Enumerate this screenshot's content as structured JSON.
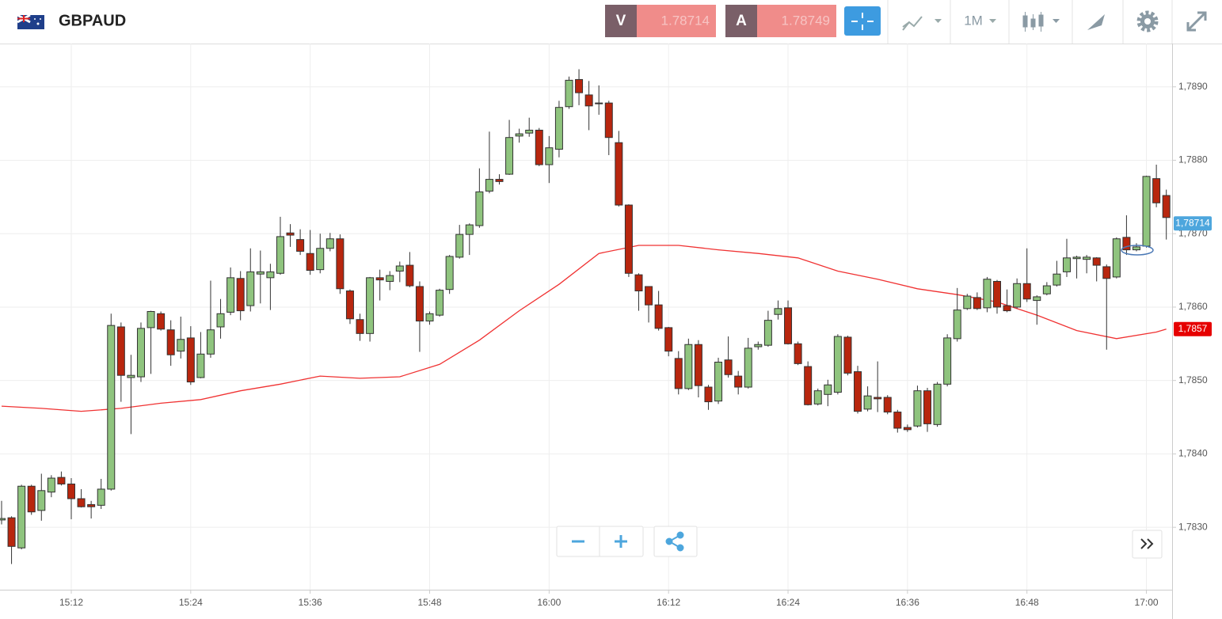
{
  "header": {
    "symbol": "GBPAUD",
    "bid_label": "V",
    "bid": "1.78714",
    "ask_label": "A",
    "ask": "1.78749",
    "timeframe": "1M"
  },
  "chart_data": {
    "type": "candlestick",
    "x": [
      "15:05",
      "15:06",
      "15:07",
      "15:08",
      "15:09",
      "15:10",
      "15:11",
      "15:12",
      "15:13",
      "15:14",
      "15:15",
      "15:16",
      "15:17",
      "15:18",
      "15:19",
      "15:20",
      "15:21",
      "15:22",
      "15:23",
      "15:24",
      "15:25",
      "15:26",
      "15:27",
      "15:28",
      "15:29",
      "15:30",
      "15:31",
      "15:32",
      "15:33",
      "15:34",
      "15:35",
      "15:36",
      "15:37",
      "15:38",
      "15:39",
      "15:40",
      "15:41",
      "15:42",
      "15:43",
      "15:44",
      "15:45",
      "15:46",
      "15:47",
      "15:48",
      "15:49",
      "15:50",
      "15:51",
      "15:52",
      "15:53",
      "15:54",
      "15:55",
      "15:56",
      "15:57",
      "15:58",
      "15:59",
      "16:00",
      "16:01",
      "16:02",
      "16:03",
      "16:04",
      "16:05",
      "16:06",
      "16:07",
      "16:08",
      "16:09",
      "16:10",
      "16:11",
      "16:12",
      "16:13",
      "16:14",
      "16:15",
      "16:16",
      "16:17",
      "16:18",
      "16:19",
      "16:20",
      "16:21",
      "16:22",
      "16:23",
      "16:24",
      "16:25",
      "16:26",
      "16:27",
      "16:28",
      "16:29",
      "16:30",
      "16:31",
      "16:32",
      "16:33",
      "16:34",
      "16:35",
      "16:36",
      "16:37",
      "16:38",
      "16:39",
      "16:40",
      "16:41",
      "16:42",
      "16:43",
      "16:44",
      "16:45",
      "16:46",
      "16:47",
      "16:48",
      "16:49",
      "16:50",
      "16:51",
      "16:52",
      "16:53",
      "16:54",
      "16:55",
      "16:56",
      "16:57",
      "16:58",
      "16:59",
      "17:00",
      "17:01",
      "17:02"
    ],
    "open": [
      1.7831,
      1.78313,
      1.78272,
      1.78356,
      1.78323,
      1.78348,
      1.78368,
      1.78359,
      1.78339,
      1.78331,
      1.7833,
      1.78352,
      1.78573,
      1.78504,
      1.78505,
      1.78572,
      1.78591,
      1.78569,
      1.7854,
      1.78558,
      1.78504,
      1.78536,
      1.78573,
      1.78593,
      1.78639,
      1.78602,
      1.78645,
      1.7864,
      1.78646,
      1.78701,
      1.78692,
      1.78673,
      1.78651,
      1.7868,
      1.78693,
      1.78622,
      1.78583,
      1.78564,
      1.7864,
      1.78635,
      1.78649,
      1.78657,
      1.78628,
      1.78581,
      1.78589,
      1.78624,
      1.78668,
      1.78699,
      1.78711,
      1.78758,
      1.78774,
      1.78781,
      1.78833,
      1.78837,
      1.78841,
      1.78794,
      1.78815,
      1.78873,
      1.7891,
      1.78889,
      1.78878,
      1.78878,
      1.78824,
      1.78739,
      1.78644,
      1.78628,
      1.78603,
      1.78572,
      1.7853,
      1.78489,
      1.78549,
      1.78491,
      1.78472,
      1.78528,
      1.78506,
      1.78491,
      1.78546,
      1.78548,
      1.7859,
      1.78599,
      1.7855,
      1.78519,
      1.78468,
      1.78481,
      1.78484,
      1.78559,
      1.78512,
      1.78461,
      1.78477,
      1.78477,
      1.78457,
      1.78436,
      1.78438,
      1.78486,
      1.7844,
      1.78495,
      1.78557,
      1.78598,
      1.78613,
      1.78599,
      1.78635,
      1.78602,
      1.786,
      1.78632,
      1.78609,
      1.78618,
      1.7863,
      1.78648,
      1.78666,
      1.78665,
      1.78667,
      1.78655,
      1.78641,
      1.78695,
      1.78678,
      1.78683,
      1.78775,
      1.78752
    ],
    "high": [
      1.78336,
      1.78315,
      1.78358,
      1.78358,
      1.78373,
      1.78371,
      1.78376,
      1.78367,
      1.78352,
      1.78336,
      1.78366,
      1.78591,
      1.78579,
      1.78535,
      1.78579,
      1.78595,
      1.78594,
      1.78582,
      1.78587,
      1.78574,
      1.78566,
      1.78636,
      1.78611,
      1.78654,
      1.78649,
      1.7868,
      1.78677,
      1.78659,
      1.78723,
      1.78713,
      1.78706,
      1.78705,
      1.787,
      1.78701,
      1.78699,
      1.78624,
      1.78591,
      1.78641,
      1.78651,
      1.78649,
      1.78662,
      1.78675,
      1.78635,
      1.78594,
      1.78625,
      1.78671,
      1.78712,
      1.78714,
      1.78789,
      1.78839,
      1.78781,
      1.78855,
      1.78843,
      1.78858,
      1.78844,
      1.78833,
      1.78881,
      1.78914,
      1.78924,
      1.78908,
      1.78902,
      1.78881,
      1.7884,
      1.7874,
      1.78646,
      1.78628,
      1.78622,
      1.78573,
      1.7854,
      1.78557,
      1.78555,
      1.78494,
      1.78531,
      1.7856,
      1.78513,
      1.78558,
      1.78553,
      1.78595,
      1.78609,
      1.78609,
      1.78553,
      1.78526,
      1.78489,
      1.78501,
      1.78563,
      1.78561,
      1.7852,
      1.78492,
      1.78526,
      1.7848,
      1.7846,
      1.7844,
      1.78493,
      1.7849,
      1.78498,
      1.78563,
      1.78626,
      1.78618,
      1.7862,
      1.78641,
      1.78637,
      1.78624,
      1.78639,
      1.7868,
      1.78616,
      1.78634,
      1.78663,
      1.78693,
      1.7867,
      1.78671,
      1.78668,
      1.78658,
      1.78695,
      1.78725,
      1.78687,
      1.78779,
      1.78794,
      1.7876
    ],
    "low": [
      1.78304,
      1.7825,
      1.7827,
      1.78317,
      1.78309,
      1.78341,
      1.78357,
      1.78311,
      1.78327,
      1.78312,
      1.78325,
      1.7835,
      1.78471,
      1.78427,
      1.78498,
      1.78509,
      1.78568,
      1.7852,
      1.7853,
      1.78494,
      1.78503,
      1.78531,
      1.78557,
      1.78589,
      1.78582,
      1.78594,
      1.78605,
      1.78596,
      1.78644,
      1.78682,
      1.78671,
      1.78644,
      1.78646,
      1.78676,
      1.78618,
      1.78577,
      1.78554,
      1.78553,
      1.78609,
      1.78623,
      1.78634,
      1.78627,
      1.78539,
      1.78576,
      1.78587,
      1.78618,
      1.78666,
      1.78671,
      1.78708,
      1.78755,
      1.78767,
      1.7878,
      1.78824,
      1.78832,
      1.78792,
      1.78769,
      1.78804,
      1.7887,
      1.78875,
      1.78841,
      1.78862,
      1.78807,
      1.78737,
      1.78641,
      1.78595,
      1.78579,
      1.78568,
      1.78533,
      1.78481,
      1.78487,
      1.78477,
      1.7846,
      1.78468,
      1.78504,
      1.78481,
      1.78489,
      1.78542,
      1.78546,
      1.78583,
      1.78549,
      1.78521,
      1.78466,
      1.78466,
      1.78465,
      1.78481,
      1.78507,
      1.78455,
      1.78458,
      1.78457,
      1.78454,
      1.78429,
      1.7843,
      1.78436,
      1.7843,
      1.78437,
      1.78492,
      1.78553,
      1.78596,
      1.78596,
      1.78593,
      1.78591,
      1.78593,
      1.78598,
      1.78607,
      1.78576,
      1.78616,
      1.78628,
      1.78641,
      1.78639,
      1.78646,
      1.78635,
      1.78542,
      1.78639,
      1.78671,
      1.78676,
      1.78681,
      1.78736,
      1.78692
    ],
    "close": [
      1.78312,
      1.78274,
      1.78356,
      1.78321,
      1.7835,
      1.78367,
      1.78359,
      1.78339,
      1.78328,
      1.78328,
      1.78352,
      1.78575,
      1.78507,
      1.78507,
      1.78571,
      1.78594,
      1.7857,
      1.78535,
      1.78556,
      1.78498,
      1.78536,
      1.78569,
      1.78591,
      1.7864,
      1.78595,
      1.78648,
      1.78648,
      1.78648,
      1.78696,
      1.78698,
      1.78676,
      1.7865,
      1.7868,
      1.78693,
      1.78625,
      1.78584,
      1.78564,
      1.7864,
      1.78637,
      1.78643,
      1.78656,
      1.78629,
      1.78581,
      1.78591,
      1.78623,
      1.78669,
      1.78699,
      1.78712,
      1.78757,
      1.78774,
      1.78771,
      1.78831,
      1.78836,
      1.78841,
      1.78794,
      1.78817,
      1.78872,
      1.78909,
      1.78892,
      1.78874,
      1.78877,
      1.78831,
      1.78739,
      1.78646,
      1.78622,
      1.78603,
      1.78571,
      1.7854,
      1.78489,
      1.78549,
      1.78493,
      1.78471,
      1.78525,
      1.78508,
      1.78491,
      1.78544,
      1.78549,
      1.78582,
      1.78598,
      1.7855,
      1.78523,
      1.78467,
      1.78486,
      1.78494,
      1.7856,
      1.7851,
      1.78458,
      1.78479,
      1.78475,
      1.78457,
      1.78435,
      1.78433,
      1.78486,
      1.78441,
      1.78495,
      1.78558,
      1.78596,
      1.78615,
      1.78598,
      1.78638,
      1.786,
      1.78595,
      1.78632,
      1.78611,
      1.78614,
      1.78629,
      1.78645,
      1.78667,
      1.78668,
      1.78668,
      1.78657,
      1.78639,
      1.78693,
      1.78678,
      1.78682,
      1.78778,
      1.78742,
      1.78722
    ],
    "up_color": "#8fc47e",
    "down_color": "#b8260e",
    "moving_average": {
      "color": "#f03232",
      "x": [
        "15:05",
        "15:09",
        "15:13",
        "15:17",
        "15:21",
        "15:25",
        "15:29",
        "15:33",
        "15:37",
        "15:41",
        "15:45",
        "15:49",
        "15:53",
        "15:57",
        "16:01",
        "16:05",
        "16:09",
        "16:13",
        "16:17",
        "16:21",
        "16:25",
        "16:29",
        "16:33",
        "16:37",
        "16:41",
        "16:45",
        "16:49",
        "16:53",
        "16:57",
        "17:01",
        "17:02"
      ],
      "values": [
        1.78465,
        1.78462,
        1.78458,
        1.78462,
        1.78469,
        1.78474,
        1.78486,
        1.78495,
        1.78506,
        1.78503,
        1.78505,
        1.78522,
        1.78555,
        1.78595,
        1.78631,
        1.78673,
        1.78684,
        1.78684,
        1.78678,
        1.78673,
        1.78667,
        1.78649,
        1.78638,
        1.78625,
        1.78617,
        1.78607,
        1.78589,
        1.78568,
        1.78557,
        1.78566,
        1.7857
      ]
    },
    "ylim": [
      1.78215,
      1.78959
    ],
    "yticks": [
      {
        "value": 1.783,
        "label": "1,7830"
      },
      {
        "value": 1.784,
        "label": "1,7840"
      },
      {
        "value": 1.785,
        "label": "1,7850"
      },
      {
        "value": 1.786,
        "label": "1,7860"
      },
      {
        "value": 1.787,
        "label": "1,7870"
      },
      {
        "value": 1.788,
        "label": "1,7880"
      },
      {
        "value": 1.789,
        "label": "1,7890"
      }
    ],
    "xticks": [
      "15:12",
      "15:24",
      "15:36",
      "15:48",
      "16:00",
      "16:12",
      "16:24",
      "16:36",
      "16:48",
      "17:00"
    ],
    "price_labels": [
      {
        "value": 1.78714,
        "label": "1,78714",
        "color": "#4da6dd"
      },
      {
        "value": 1.7857,
        "label": "1,7857",
        "color": "#e60000"
      }
    ],
    "grid": true
  }
}
